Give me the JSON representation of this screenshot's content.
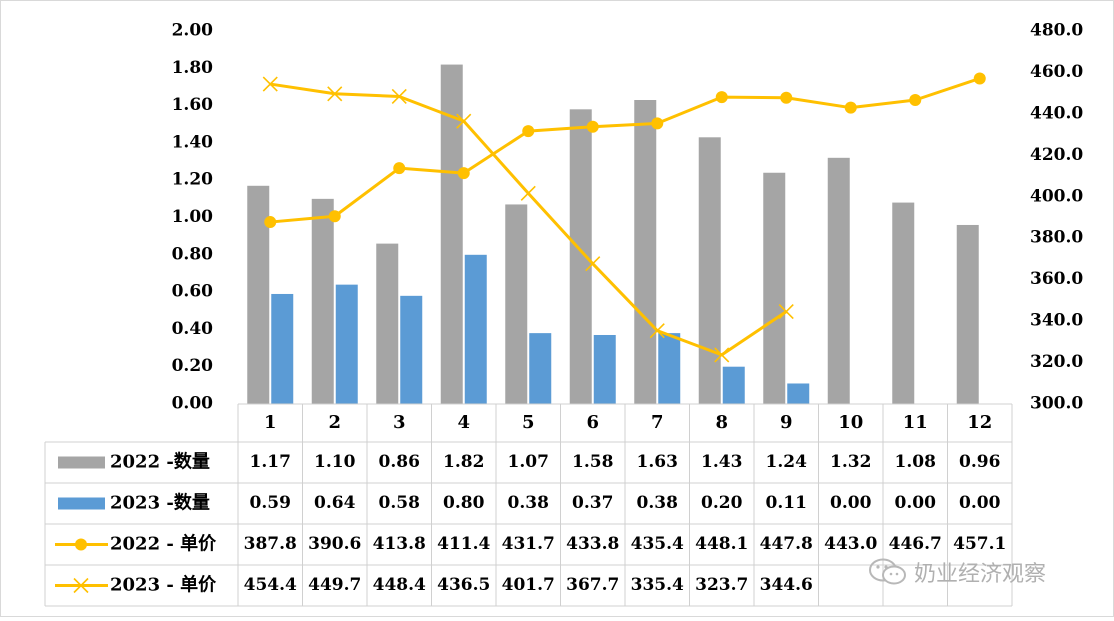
{
  "chart_data": {
    "type": "bar+line",
    "categories": [
      "1",
      "2",
      "3",
      "4",
      "5",
      "6",
      "7",
      "8",
      "9",
      "10",
      "11",
      "12"
    ],
    "y_left": {
      "ylim": [
        0,
        2.0
      ],
      "ticks": [
        "0.00",
        "0.20",
        "0.40",
        "0.60",
        "0.80",
        "1.00",
        "1.20",
        "1.40",
        "1.60",
        "1.80",
        "2.00"
      ]
    },
    "y_right": {
      "ylim": [
        300,
        480
      ],
      "ticks": [
        "300.0",
        "320.0",
        "340.0",
        "360.0",
        "380.0",
        "400.0",
        "420.0",
        "440.0",
        "460.0",
        "480.0"
      ]
    },
    "series": [
      {
        "name": "2022 -数量",
        "kind": "bar",
        "axis": "left",
        "color": "#a5a5a5",
        "values": [
          1.17,
          1.1,
          0.86,
          1.82,
          1.07,
          1.58,
          1.63,
          1.43,
          1.24,
          1.32,
          1.08,
          0.96
        ],
        "labels": [
          "1.17",
          "1.10",
          "0.86",
          "1.82",
          "1.07",
          "1.58",
          "1.63",
          "1.43",
          "1.24",
          "1.32",
          "1.08",
          "0.96"
        ]
      },
      {
        "name": "2023 -数量",
        "kind": "bar",
        "axis": "left",
        "color": "#5b9bd5",
        "values": [
          0.59,
          0.64,
          0.58,
          0.8,
          0.38,
          0.37,
          0.38,
          0.2,
          0.11,
          0.0,
          0.0,
          0.0
        ],
        "labels": [
          "0.59",
          "0.64",
          "0.58",
          "0.80",
          "0.38",
          "0.37",
          "0.38",
          "0.20",
          "0.11",
          "0.00",
          "0.00",
          "0.00"
        ]
      },
      {
        "name": "2022 - 单价",
        "kind": "line",
        "marker": "circle",
        "axis": "right",
        "color": "#ffc000",
        "values": [
          387.8,
          390.6,
          413.8,
          411.4,
          431.7,
          433.8,
          435.4,
          448.1,
          447.8,
          443.0,
          446.7,
          457.1
        ],
        "labels": [
          "387.8",
          "390.6",
          "413.8",
          "411.4",
          "431.7",
          "433.8",
          "435.4",
          "448.1",
          "447.8",
          "443.0",
          "446.7",
          "457.1"
        ]
      },
      {
        "name": "2023 - 单价",
        "kind": "line",
        "marker": "x",
        "axis": "right",
        "color": "#ffc000",
        "values": [
          454.4,
          449.7,
          448.4,
          436.5,
          401.7,
          367.7,
          335.4,
          323.7,
          344.6,
          null,
          null,
          null
        ],
        "labels": [
          "454.4",
          "449.7",
          "448.4",
          "436.5",
          "401.7",
          "367.7",
          "335.4",
          "323.7",
          "344.6",
          "",
          "",
          ""
        ]
      }
    ],
    "legend": "data-table-bottom",
    "grid": false
  },
  "watermark": {
    "text": "奶业经济观察",
    "icon": "wechat-icon"
  }
}
